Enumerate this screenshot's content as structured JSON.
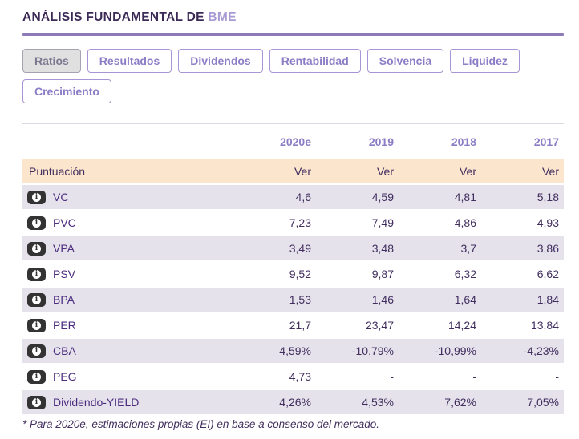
{
  "header": {
    "title": "ANÁLISIS FUNDAMENTAL DE",
    "ticker": "BME"
  },
  "tabs": [
    {
      "label": "Ratios",
      "active": true
    },
    {
      "label": "Resultados",
      "active": false
    },
    {
      "label": "Dividendos",
      "active": false
    },
    {
      "label": "Rentabilidad",
      "active": false
    },
    {
      "label": "Solvencia",
      "active": false
    },
    {
      "label": "Liquidez",
      "active": false
    },
    {
      "label": "Crecimiento",
      "active": false
    }
  ],
  "table": {
    "year_headers": [
      "2020e",
      "2019",
      "2018",
      "2017"
    ],
    "score_row": {
      "label": "Puntuación",
      "links": [
        "Ver",
        "Ver",
        "Ver",
        "Ver"
      ]
    },
    "rows": [
      {
        "label": "VC",
        "values": [
          "4,6",
          "4,59",
          "4,81",
          "5,18"
        ]
      },
      {
        "label": "PVC",
        "values": [
          "7,23",
          "7,49",
          "4,86",
          "4,93"
        ]
      },
      {
        "label": "VPA",
        "values": [
          "3,49",
          "3,48",
          "3,7",
          "3,86"
        ]
      },
      {
        "label": "PSV",
        "values": [
          "9,52",
          "9,87",
          "6,32",
          "6,62"
        ]
      },
      {
        "label": "BPA",
        "values": [
          "1,53",
          "1,46",
          "1,64",
          "1,84"
        ]
      },
      {
        "label": "PER",
        "values": [
          "21,7",
          "23,47",
          "14,24",
          "13,84"
        ]
      },
      {
        "label": "CBA",
        "values": [
          "4,59%",
          "-10,79%",
          "-10,99%",
          "-4,23%"
        ]
      },
      {
        "label": "PEG",
        "values": [
          "4,73",
          "-",
          "-",
          "-"
        ]
      },
      {
        "label": "Dividendo-YIELD",
        "values": [
          "4,26%",
          "4,53%",
          "7,62%",
          "7,05%"
        ]
      }
    ]
  },
  "icons": {
    "info": "i"
  },
  "footnote": "* Para 2020e, estimaciones propias (EI) en base a consenso del mercado.",
  "colors": {
    "title_dark": "#3c2a56",
    "ticker_light": "#a89bd3",
    "brand_purple": "#8d7ab8",
    "tab_purple": "#8c7dc7",
    "score_row_bg": "#fce5cd",
    "shaded_row_bg": "#e5e2ec",
    "value_text": "#412e5e",
    "label_text": "#4b2c7f"
  }
}
